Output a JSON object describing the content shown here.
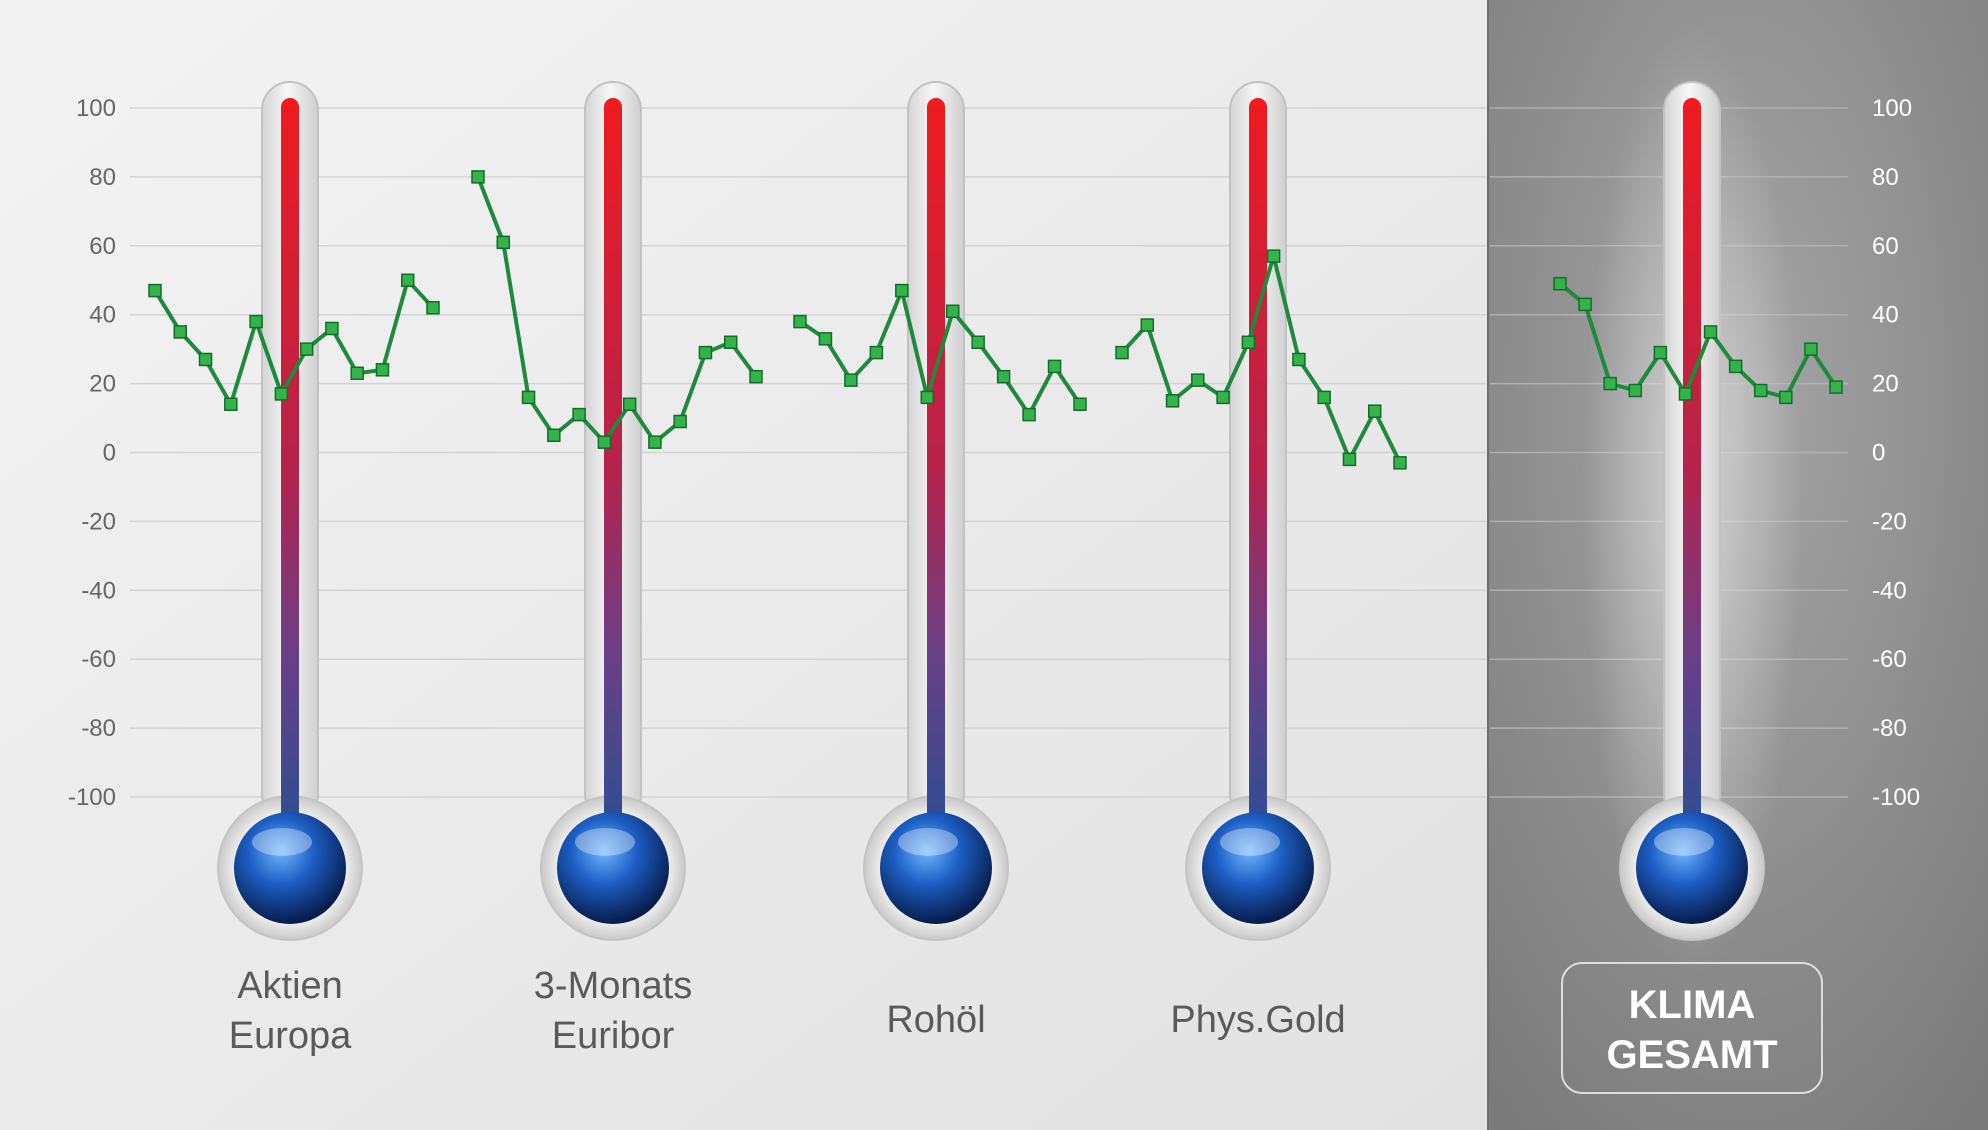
{
  "chart_data": {
    "type": "line",
    "ylim": [
      -100,
      100
    ],
    "yticks": [
      100,
      80,
      60,
      40,
      20,
      0,
      -20,
      -40,
      -60,
      -80,
      -100
    ],
    "grid": true,
    "colors": {
      "line": "#1f8a3c",
      "marker": "#33b34a",
      "tube_top": "#e8141c",
      "tube_bottom": "#2b4f94",
      "bulb": "#1e5fbf",
      "panel_right": "#8c8c8c"
    },
    "panels": [
      {
        "name": "Aktien Europa",
        "label_lines": [
          "Aktien",
          "Europa"
        ],
        "values": [
          47,
          35,
          27,
          14,
          38,
          17,
          30,
          36,
          23,
          24,
          50,
          42
        ]
      },
      {
        "name": "3-Monats Euribor",
        "label_lines": [
          "3-Monats",
          "Euribor"
        ],
        "values": [
          80,
          61,
          16,
          5,
          11,
          3,
          14,
          3,
          9,
          29,
          32,
          22
        ]
      },
      {
        "name": "Rohöl",
        "label_lines": [
          "Rohöl"
        ],
        "values": [
          38,
          33,
          21,
          29,
          47,
          16,
          41,
          32,
          22,
          11,
          25,
          14
        ]
      },
      {
        "name": "Phys.Gold",
        "label_lines": [
          "Phys.Gold"
        ],
        "values": [
          29,
          37,
          15,
          21,
          16,
          32,
          57,
          27,
          16,
          -2,
          12,
          -3
        ]
      },
      {
        "name": "KLIMA GESAMT",
        "label_lines": [
          "KLIMA",
          "GESAMT"
        ],
        "values": [
          49,
          43,
          20,
          18,
          29,
          17,
          35,
          25,
          18,
          16,
          30,
          19
        ]
      }
    ]
  }
}
